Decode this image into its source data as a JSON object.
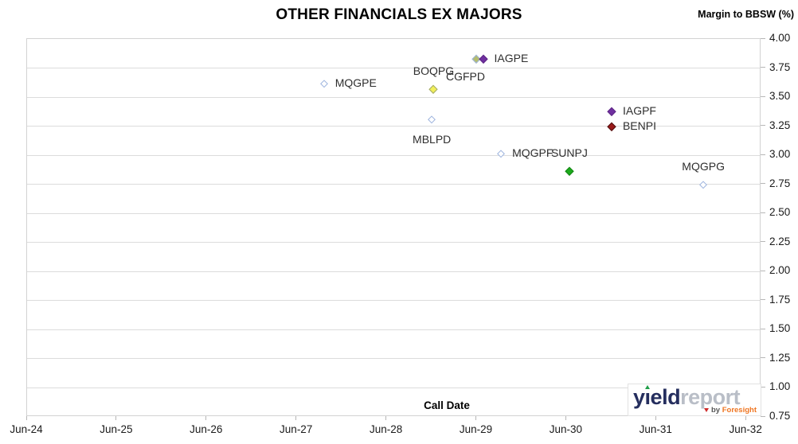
{
  "header": {
    "title": "OTHER FINANCIALS EX MAJORS",
    "y_axis_unit_label": "Margin to BBSW (%)"
  },
  "footer": {
    "x_axis_label": "Call Date"
  },
  "logo": {
    "word1": "yield",
    "word2": "report",
    "by": "by",
    "brand": "Foresight"
  },
  "chart_data": {
    "type": "scatter",
    "title": "OTHER FINANCIALS EX MAJORS",
    "xlabel": "Call Date",
    "ylabel": "Margin to BBSW (%)",
    "x_ticks": [
      "Jun-24",
      "Jun-25",
      "Jun-26",
      "Jun-27",
      "Jun-28",
      "Jun-29",
      "Jun-30",
      "Jun-31",
      "Jun-32"
    ],
    "y_ticks": [
      "4.00",
      "3.75",
      "3.50",
      "3.25",
      "3.00",
      "2.75",
      "2.50",
      "2.25",
      "2.00",
      "1.75",
      "1.50",
      "1.25",
      "1.00",
      "0.75"
    ],
    "ylim": [
      0.75,
      4.0
    ],
    "x_years_after_first_tick_range": [
      0,
      8.17
    ],
    "grid": "horizontal",
    "legend_position": "none",
    "points": [
      {
        "label": "MQGPE",
        "call_date": "Oct-27",
        "x": 3.31,
        "y": 3.61,
        "marker": "diamond-open",
        "edge": "#9db4de",
        "fill": "#ffffff",
        "label_pos": "right"
      },
      {
        "label": "BOQPG",
        "call_date": "Dec-28",
        "x": 4.53,
        "y": 3.56,
        "marker": "diamond",
        "edge": "#a0a86a",
        "fill": "#f2ef5a",
        "label_pos": "above"
      },
      {
        "label": "CGFPD",
        "call_date": "Jun-29",
        "x": 5.0,
        "y": 3.82,
        "marker": "diamond",
        "edge": "#9db4de",
        "fill": "#b5bd6e",
        "label_pos": "below-left"
      },
      {
        "label": "IAGPE",
        "call_date": "Jul-29",
        "x": 5.08,
        "y": 3.82,
        "marker": "diamond",
        "edge": "#5c2585",
        "fill": "#7030a0",
        "label_pos": "right"
      },
      {
        "label": "MBLPD",
        "call_date": "Dec-28",
        "x": 4.51,
        "y": 3.3,
        "marker": "diamond-open",
        "edge": "#9db4de",
        "fill": "#ffffff",
        "label_pos": "below"
      },
      {
        "label": "IAGPF",
        "call_date": "Dec-30",
        "x": 6.51,
        "y": 3.37,
        "marker": "diamond",
        "edge": "#5c2585",
        "fill": "#7030a0",
        "label_pos": "right"
      },
      {
        "label": "BENPI",
        "call_date": "Dec-30",
        "x": 6.51,
        "y": 3.24,
        "marker": "diamond",
        "edge": "#4d0d0d",
        "fill": "#9a1a1a",
        "label_pos": "right"
      },
      {
        "label": "MQGPF",
        "call_date": "Sep-29",
        "x": 5.28,
        "y": 3.01,
        "marker": "diamond-open",
        "edge": "#9db4de",
        "fill": "#ffffff",
        "label_pos": "right"
      },
      {
        "label": "SUNPJ",
        "call_date": "Jun-30",
        "x": 6.04,
        "y": 2.86,
        "marker": "diamond",
        "edge": "#128312",
        "fill": "#1caa1c",
        "label_pos": "above"
      },
      {
        "label": "MQGPG",
        "call_date": "Dec-31",
        "x": 7.53,
        "y": 2.74,
        "marker": "diamond-open",
        "edge": "#9db4de",
        "fill": "#ffffff",
        "label_pos": "above"
      }
    ]
  }
}
